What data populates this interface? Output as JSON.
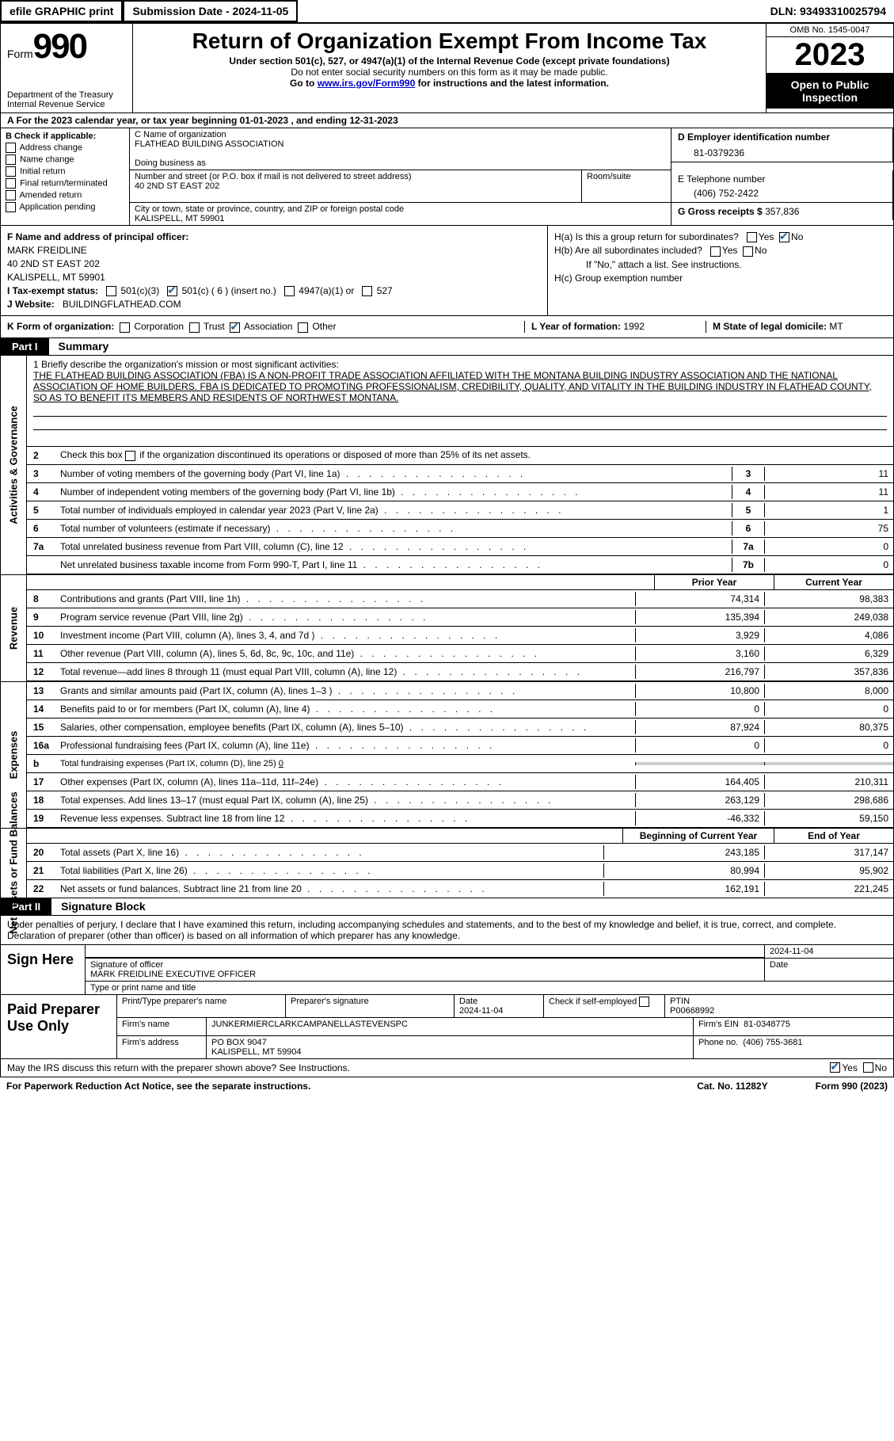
{
  "top_bar": {
    "efile": "efile GRAPHIC print",
    "sub_date_label": "Submission Date - 2024-11-05",
    "dln": "DLN: 93493310025794"
  },
  "header": {
    "form_word": "Form",
    "form_num": "990",
    "dept": "Department of the Treasury Internal Revenue Service",
    "title": "Return of Organization Exempt From Income Tax",
    "sub1": "Under section 501(c), 527, or 4947(a)(1) of the Internal Revenue Code (except private foundations)",
    "sub2": "Do not enter social security numbers on this form as it may be made public.",
    "sub3_pre": "Go to ",
    "sub3_link": "www.irs.gov/Form990",
    "sub3_post": " for instructions and the latest information.",
    "omb": "OMB No. 1545-0047",
    "year": "2023",
    "inspect": "Open to Public Inspection"
  },
  "row_a": "A For the 2023 calendar year, or tax year beginning 01-01-2023   , and ending 12-31-2023",
  "col_b": {
    "label": "B Check if applicable:",
    "items": [
      "Address change",
      "Name change",
      "Initial return",
      "Final return/terminated",
      "Amended return",
      "Application pending"
    ]
  },
  "col_c": {
    "name_label": "C Name of organization",
    "name": "FLATHEAD BUILDING ASSOCIATION",
    "dba_label": "Doing business as",
    "street_label": "Number and street (or P.O. box if mail is not delivered to street address)",
    "street": "40 2ND ST EAST 202",
    "room_label": "Room/suite",
    "city_label": "City or town, state or province, country, and ZIP or foreign postal code",
    "city": "KALISPELL, MT  59901"
  },
  "col_d": {
    "ein_label": "D Employer identification number",
    "ein": "81-0379236",
    "phone_label": "E Telephone number",
    "phone": "(406) 752-2422",
    "gross_label": "G Gross receipts $",
    "gross": "357,836"
  },
  "block_f": {
    "f_label": "F Name and address of principal officer:",
    "f_name": "MARK FREIDLINE",
    "f_street": "40 2ND ST EAST 202",
    "f_city": "KALISPELL, MT  59901",
    "i_label": "I Tax-exempt status:",
    "i_501c3": "501(c)(3)",
    "i_501c": "501(c) ( 6 ) (insert no.)",
    "i_4947": "4947(a)(1) or",
    "i_527": "527",
    "j_label": "J Website:",
    "j_val": "BUILDINGFLATHEAD.COM"
  },
  "col_h": {
    "ha": "H(a) Is this a group return for subordinates?",
    "hb": "H(b) Are all subordinates included?",
    "hb_note": "If \"No,\" attach a list. See instructions.",
    "hc": "H(c) Group exemption number",
    "yes": "Yes",
    "no": "No"
  },
  "block_k": {
    "k_label": "K Form of organization:",
    "k_corp": "Corporation",
    "k_trust": "Trust",
    "k_assoc": "Association",
    "k_other": "Other",
    "l_label": "L Year of formation:",
    "l_val": "1992",
    "m_label": "M State of legal domicile:",
    "m_val": "MT"
  },
  "part1": {
    "tab": "Part I",
    "title": "Summary"
  },
  "summary": {
    "vert_ag": "Activities & Governance",
    "vert_rev": "Revenue",
    "vert_exp": "Expenses",
    "vert_net": "Net Assets or Fund Balances",
    "line1_label": "1 Briefly describe the organization's mission or most significant activities:",
    "mission": "THE FLATHEAD BUILDING ASSOCIATION (FBA) IS A NON-PROFIT TRADE ASSOCIATION AFFILIATED WITH THE MONTANA BUILDING INDUSTRY ASSOCIATION AND THE NATIONAL ASSOCIATION OF HOME BUILDERS. FBA IS DEDICATED TO PROMOTING PROFESSIONALISM, CREDIBILITY, QUALITY, AND VITALITY IN THE BUILDING INDUSTRY IN FLATHEAD COUNTY, SO AS TO BENEFIT ITS MEMBERS AND RESIDENTS OF NORTHWEST MONTANA.",
    "line2": "Check this box      if the organization discontinued its operations or disposed of more than 25% of its net assets.",
    "rows_ag": [
      {
        "n": "3",
        "label": "Number of voting members of the governing body (Part VI, line 1a)",
        "box": "3",
        "val": "11"
      },
      {
        "n": "4",
        "label": "Number of independent voting members of the governing body (Part VI, line 1b)",
        "box": "4",
        "val": "11"
      },
      {
        "n": "5",
        "label": "Total number of individuals employed in calendar year 2023 (Part V, line 2a)",
        "box": "5",
        "val": "1"
      },
      {
        "n": "6",
        "label": "Total number of volunteers (estimate if necessary)",
        "box": "6",
        "val": "75"
      },
      {
        "n": "7a",
        "label": "Total unrelated business revenue from Part VIII, column (C), line 12",
        "box": "7a",
        "val": "0"
      },
      {
        "n": "",
        "label": "Net unrelated business taxable income from Form 990-T, Part I, line 11",
        "box": "7b",
        "val": "0"
      }
    ],
    "hdr_prior": "Prior Year",
    "hdr_current": "Current Year",
    "rows_rev": [
      {
        "n": "8",
        "label": "Contributions and grants (Part VIII, line 1h)",
        "p": "74,314",
        "c": "98,383"
      },
      {
        "n": "9",
        "label": "Program service revenue (Part VIII, line 2g)",
        "p": "135,394",
        "c": "249,038"
      },
      {
        "n": "10",
        "label": "Investment income (Part VIII, column (A), lines 3, 4, and 7d )",
        "p": "3,929",
        "c": "4,086"
      },
      {
        "n": "11",
        "label": "Other revenue (Part VIII, column (A), lines 5, 6d, 8c, 9c, 10c, and 11e)",
        "p": "3,160",
        "c": "6,329"
      },
      {
        "n": "12",
        "label": "Total revenue—add lines 8 through 11 (must equal Part VIII, column (A), line 12)",
        "p": "216,797",
        "c": "357,836"
      }
    ],
    "rows_exp": [
      {
        "n": "13",
        "label": "Grants and similar amounts paid (Part IX, column (A), lines 1–3 )",
        "p": "10,800",
        "c": "8,000"
      },
      {
        "n": "14",
        "label": "Benefits paid to or for members (Part IX, column (A), line 4)",
        "p": "0",
        "c": "0"
      },
      {
        "n": "15",
        "label": "Salaries, other compensation, employee benefits (Part IX, column (A), lines 5–10)",
        "p": "87,924",
        "c": "80,375"
      },
      {
        "n": "16a",
        "label": "Professional fundraising fees (Part IX, column (A), line 11e)",
        "p": "0",
        "c": "0"
      }
    ],
    "row_16b": {
      "n": "b",
      "label": "Total fundraising expenses (Part IX, column (D), line 25)",
      "val": "0"
    },
    "rows_exp2": [
      {
        "n": "17",
        "label": "Other expenses (Part IX, column (A), lines 11a–11d, 11f–24e)",
        "p": "164,405",
        "c": "210,311"
      },
      {
        "n": "18",
        "label": "Total expenses. Add lines 13–17 (must equal Part IX, column (A), line 25)",
        "p": "263,129",
        "c": "298,686"
      },
      {
        "n": "19",
        "label": "Revenue less expenses. Subtract line 18 from line 12",
        "p": "-46,332",
        "c": "59,150"
      }
    ],
    "hdr_begin": "Beginning of Current Year",
    "hdr_end": "End of Year",
    "rows_net": [
      {
        "n": "20",
        "label": "Total assets (Part X, line 16)",
        "p": "243,185",
        "c": "317,147"
      },
      {
        "n": "21",
        "label": "Total liabilities (Part X, line 26)",
        "p": "80,994",
        "c": "95,902"
      },
      {
        "n": "22",
        "label": "Net assets or fund balances. Subtract line 21 from line 20",
        "p": "162,191",
        "c": "221,245"
      }
    ]
  },
  "part2": {
    "tab": "Part II",
    "title": "Signature Block"
  },
  "sig": {
    "declaration": "Under penalties of perjury, I declare that I have examined this return, including accompanying schedules and statements, and to the best of my knowledge and belief, it is true, correct, and complete. Declaration of preparer (other than officer) is based on all information of which preparer has any knowledge.",
    "sign_here": "Sign Here",
    "sig_label": "Signature of officer",
    "officer": "MARK FREIDLINE  EXECUTIVE OFFICER",
    "type_label": "Type or print name and title",
    "date_label": "Date",
    "date": "2024-11-04"
  },
  "prep": {
    "paid": "Paid Preparer Use Only",
    "name_label": "Print/Type preparer's name",
    "sig_label": "Preparer's signature",
    "date_label": "Date",
    "date": "2024-11-04",
    "check_label": "Check        if self-employed",
    "ptin_label": "PTIN",
    "ptin": "P00668992",
    "firm_name_label": "Firm's name",
    "firm_name": "JUNKERMIERCLARKCAMPANELLASTEVENSPC",
    "firm_ein_label": "Firm's EIN",
    "firm_ein": "81-0348775",
    "firm_addr_label": "Firm's address",
    "firm_addr1": "PO BOX 9047",
    "firm_addr2": "KALISPELL, MT  59904",
    "phone_label": "Phone no.",
    "phone": "(406) 755-3681"
  },
  "discuss": {
    "text": "May the IRS discuss this return with the preparer shown above? See Instructions.",
    "yes": "Yes",
    "no": "No"
  },
  "footer": {
    "left": "For Paperwork Reduction Act Notice, see the separate instructions.",
    "mid": "Cat. No. 11282Y",
    "right": "Form 990 (2023)"
  }
}
